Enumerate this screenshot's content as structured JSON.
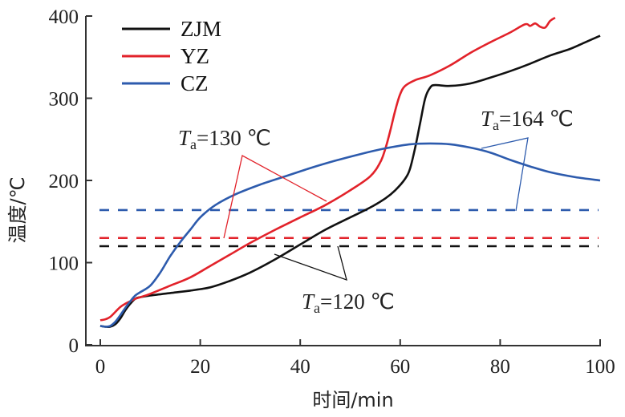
{
  "chart_data": {
    "type": "line",
    "title": "",
    "xlabel": "时间/min",
    "ylabel": "温度/℃",
    "xlim": [
      0,
      100
    ],
    "ylim": [
      0,
      400
    ],
    "xticks": [
      "0",
      "20",
      "40",
      "60",
      "80",
      "100"
    ],
    "yticks": [
      "0",
      "100",
      "200",
      "300",
      "400"
    ],
    "grid": false,
    "legend_position": "top-left",
    "series": [
      {
        "name": "ZJM",
        "color": "#111111",
        "points": [
          [
            0,
            23
          ],
          [
            1,
            22
          ],
          [
            2,
            22
          ],
          [
            3,
            25
          ],
          [
            4,
            32
          ],
          [
            5,
            42
          ],
          [
            6,
            50
          ],
          [
            7,
            56
          ],
          [
            8,
            58
          ],
          [
            10,
            60
          ],
          [
            14,
            63
          ],
          [
            18,
            66
          ],
          [
            22,
            70
          ],
          [
            26,
            78
          ],
          [
            30,
            88
          ],
          [
            35,
            104
          ],
          [
            40,
            122
          ],
          [
            45,
            140
          ],
          [
            50,
            155
          ],
          [
            54,
            167
          ],
          [
            57,
            178
          ],
          [
            59,
            188
          ],
          [
            61,
            202
          ],
          [
            62,
            215
          ],
          [
            63,
            240
          ],
          [
            64,
            270
          ],
          [
            65,
            300
          ],
          [
            66,
            313
          ],
          [
            67,
            316
          ],
          [
            70,
            315
          ],
          [
            74,
            318
          ],
          [
            78,
            325
          ],
          [
            82,
            333
          ],
          [
            86,
            342
          ],
          [
            90,
            352
          ],
          [
            94,
            360
          ],
          [
            97,
            368
          ],
          [
            100,
            376
          ]
        ]
      },
      {
        "name": "YZ",
        "color": "#e2222a",
        "points": [
          [
            0,
            30
          ],
          [
            1,
            31
          ],
          [
            2,
            34
          ],
          [
            3,
            40
          ],
          [
            4,
            46
          ],
          [
            5,
            50
          ],
          [
            6,
            53
          ],
          [
            7,
            56
          ],
          [
            8,
            58
          ],
          [
            10,
            62
          ],
          [
            14,
            72
          ],
          [
            18,
            82
          ],
          [
            22,
            96
          ],
          [
            26,
            110
          ],
          [
            30,
            124
          ],
          [
            35,
            140
          ],
          [
            40,
            155
          ],
          [
            45,
            170
          ],
          [
            50,
            188
          ],
          [
            54,
            205
          ],
          [
            56,
            222
          ],
          [
            57,
            238
          ],
          [
            58,
            260
          ],
          [
            59,
            285
          ],
          [
            60,
            305
          ],
          [
            61,
            315
          ],
          [
            63,
            322
          ],
          [
            66,
            328
          ],
          [
            70,
            340
          ],
          [
            74,
            355
          ],
          [
            78,
            368
          ],
          [
            82,
            380
          ],
          [
            85,
            390
          ],
          [
            86,
            388
          ],
          [
            87,
            391
          ],
          [
            88,
            387
          ],
          [
            89,
            386
          ],
          [
            90,
            394
          ],
          [
            91,
            398
          ]
        ]
      },
      {
        "name": "CZ",
        "color": "#2d5bad",
        "points": [
          [
            0,
            23
          ],
          [
            1,
            22
          ],
          [
            2,
            23
          ],
          [
            3,
            28
          ],
          [
            4,
            36
          ],
          [
            5,
            45
          ],
          [
            6,
            53
          ],
          [
            7,
            60
          ],
          [
            8,
            64
          ],
          [
            10,
            72
          ],
          [
            12,
            88
          ],
          [
            14,
            108
          ],
          [
            16,
            125
          ],
          [
            18,
            140
          ],
          [
            20,
            155
          ],
          [
            23,
            170
          ],
          [
            27,
            183
          ],
          [
            32,
            195
          ],
          [
            37,
            205
          ],
          [
            42,
            215
          ],
          [
            47,
            224
          ],
          [
            52,
            232
          ],
          [
            57,
            239
          ],
          [
            62,
            244
          ],
          [
            66,
            245
          ],
          [
            70,
            244
          ],
          [
            74,
            240
          ],
          [
            78,
            234
          ],
          [
            82,
            225
          ],
          [
            86,
            217
          ],
          [
            90,
            210
          ],
          [
            95,
            204
          ],
          [
            100,
            200
          ]
        ]
      }
    ],
    "reference_lines": [
      {
        "name": "CZ Ta",
        "value": 164,
        "color": "#2d5bad",
        "style": "dashed"
      },
      {
        "name": "YZ Ta",
        "value": 130,
        "color": "#e2222a",
        "style": "dashed"
      },
      {
        "name": "ZJM Ta",
        "value": 120,
        "color": "#111111",
        "style": "dashed"
      }
    ],
    "annotations": [
      {
        "label_T": "T",
        "label_sub": "a",
        "label_rest": "=130 ℃",
        "color": "#e2222a"
      },
      {
        "label_T": "T",
        "label_sub": "a",
        "label_rest": "=164 ℃",
        "color": "#2d5bad"
      },
      {
        "label_T": "T",
        "label_sub": "a",
        "label_rest": "=120 ℃",
        "color": "#111111"
      }
    ]
  }
}
